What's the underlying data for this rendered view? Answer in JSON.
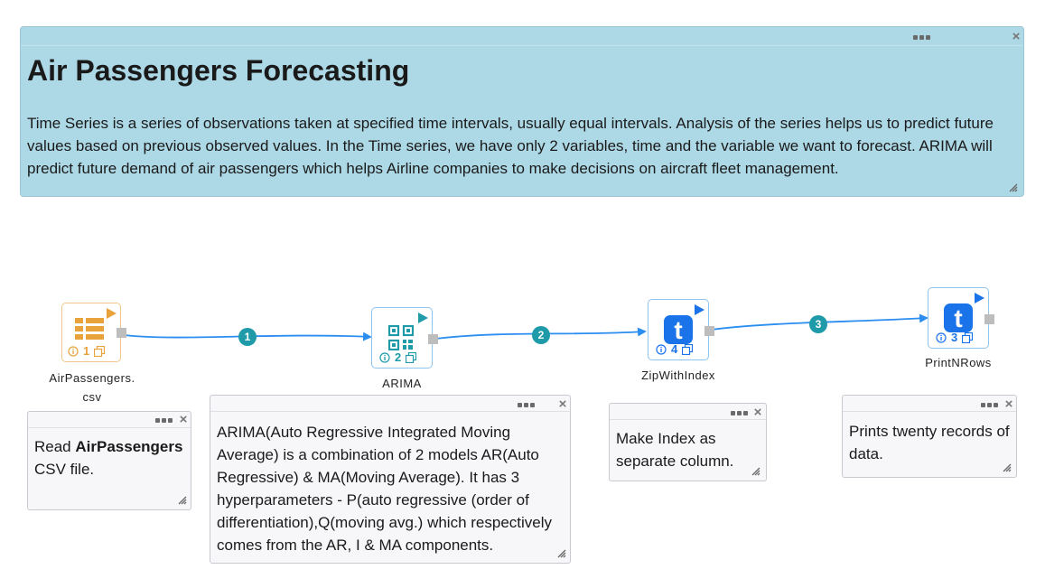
{
  "header": {
    "title": "Air Passengers Forecasting",
    "description": "Time Series is a series of observations taken at specified time intervals, usually equal intervals. Analysis of the series helps us to predict future values based on previous observed values. In the Time series, we have only 2 variables, time and the variable we want to forecast. ARIMA will predict future demand of air passengers which helps Airline companies to make decisions on aircraft fleet management."
  },
  "nodes": [
    {
      "id": "1",
      "label_line1": "AirPassengers.",
      "label_line2": "csv",
      "icon": "csv-file-icon",
      "color": "#e8a33c"
    },
    {
      "id": "2",
      "label": "ARIMA",
      "icon": "qr-model-icon",
      "color": "#1f9aa9"
    },
    {
      "id": "4",
      "label": "ZipWithIndex",
      "icon": "t-transform-icon",
      "color": "#1a73e8"
    },
    {
      "id": "3",
      "label": "PrintNRows",
      "icon": "t-transform-icon",
      "color": "#1a73e8"
    }
  ],
  "edges": [
    {
      "label": "1"
    },
    {
      "label": "2"
    },
    {
      "label": "3"
    }
  ],
  "comments": {
    "csv": {
      "prefix": "Read ",
      "bold": "AirPassengers",
      "suffix": " CSV file."
    },
    "arima": {
      "text": "ARIMA(Auto Regressive Integrated Moving Average) is a combination of 2 models AR(Auto Regressive) & MA(Moving Average). It has 3 hyperparameters - P(auto regressive (order of differentiation),Q(moving avg.) which respectively comes from the AR, I & MA components."
    },
    "zip": {
      "text": "Make Index as separate column."
    },
    "print": {
      "text": "Prints twenty records of data."
    }
  },
  "colors": {
    "header_bg": "#add8e6",
    "edge": "#2b8ef0",
    "badge": "#1f9aa9",
    "csv_orange": "#e8a33c",
    "blue": "#1a73e8"
  }
}
